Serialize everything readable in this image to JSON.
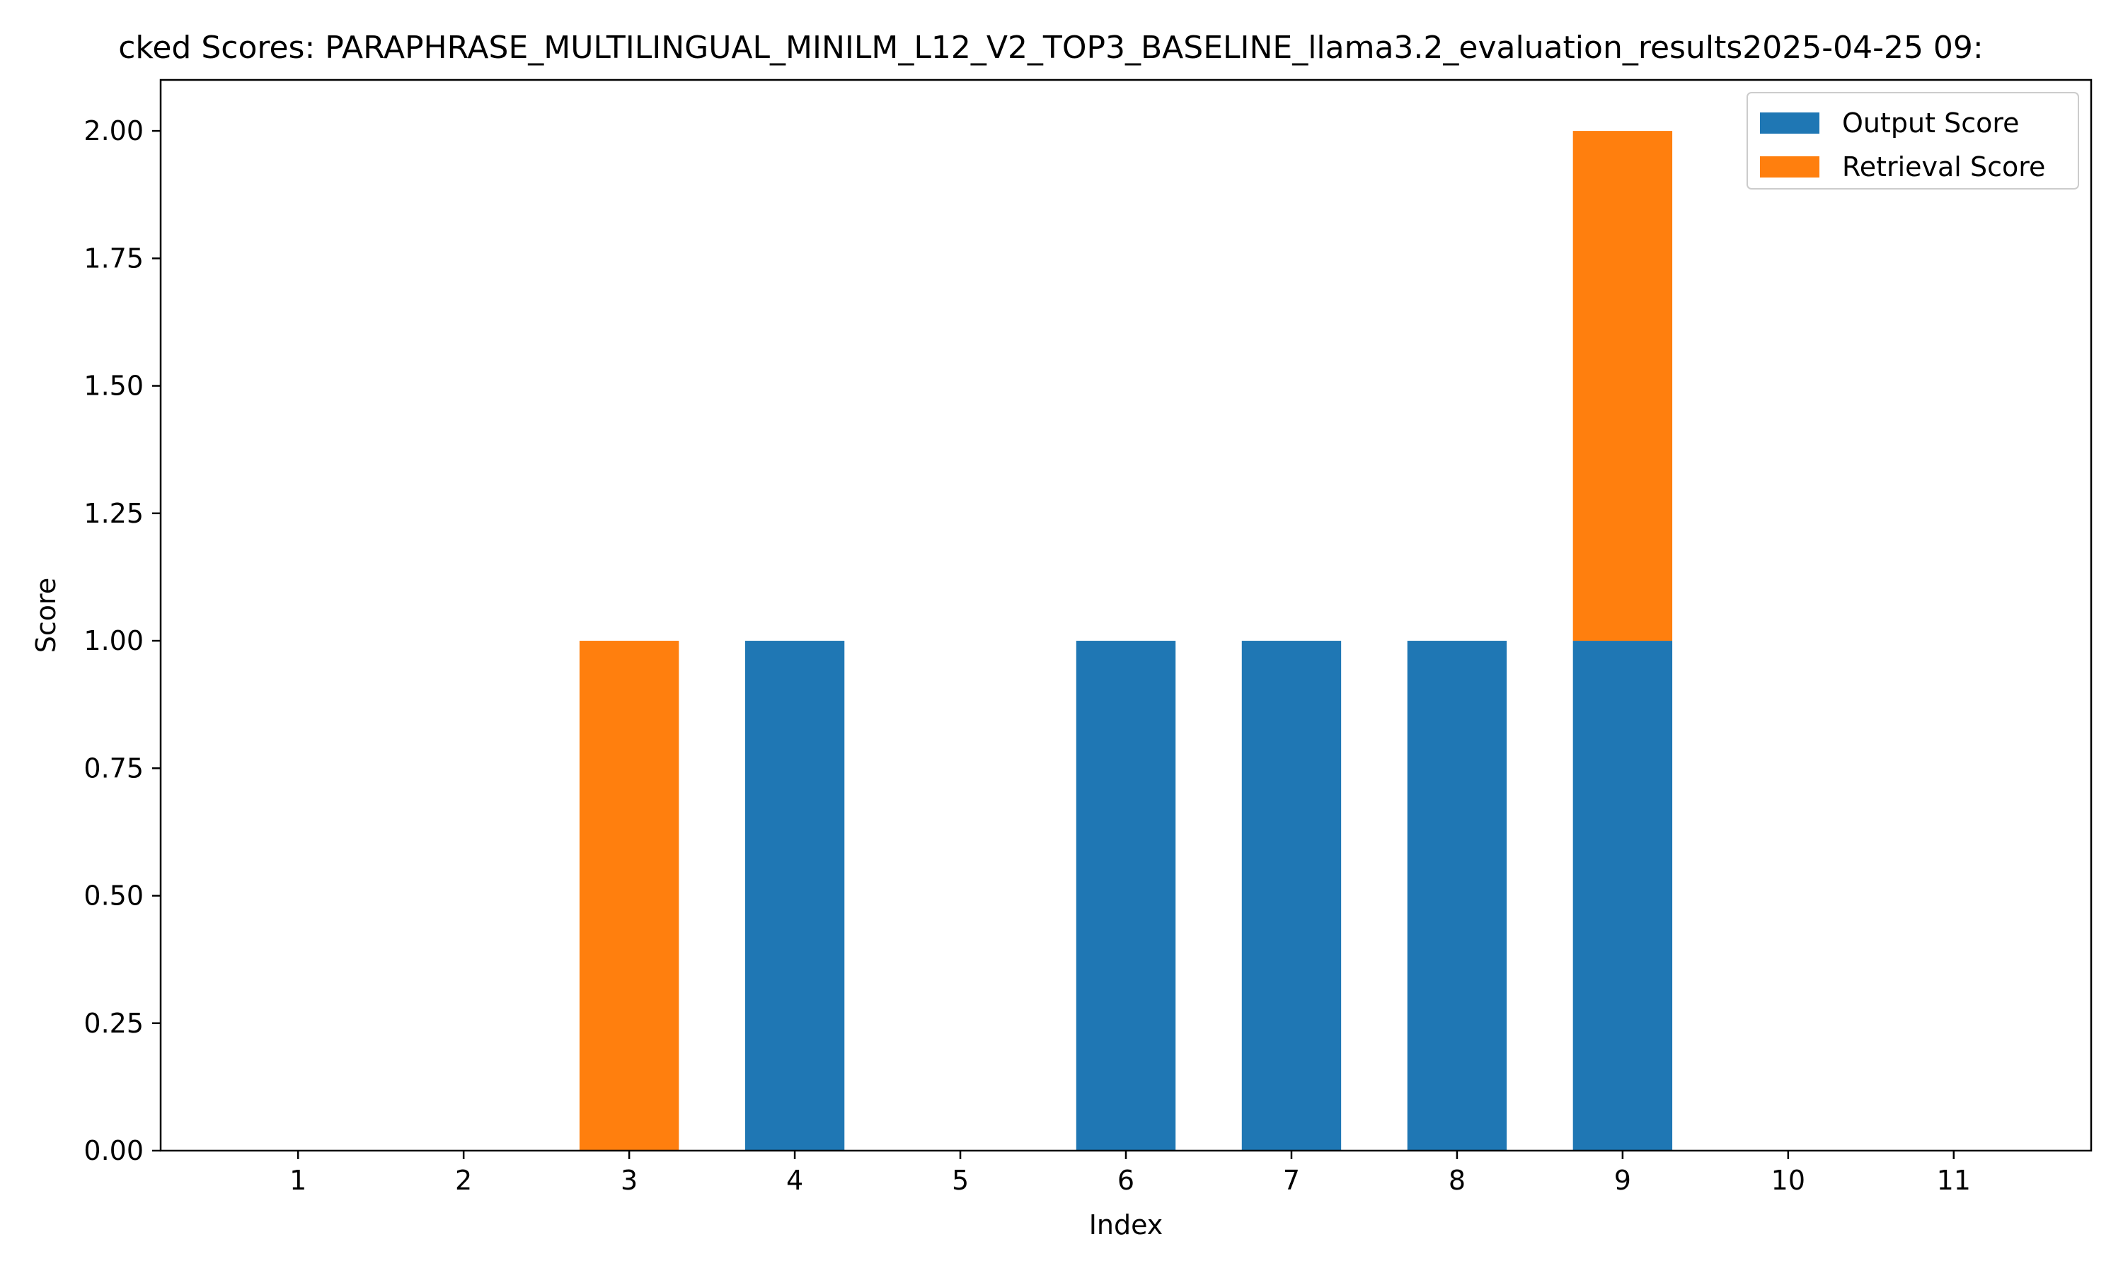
{
  "chart_data": {
    "type": "bar",
    "stacked": true,
    "title": "cked Scores: PARAPHRASE_MULTILINGUAL_MINILM_L12_V2_TOP3_BASELINE_llama3.2_evaluation_results2025-04-25 09:",
    "xlabel": "Index",
    "ylabel": "Score",
    "categories": [
      "1",
      "2",
      "3",
      "4",
      "5",
      "6",
      "7",
      "8",
      "9",
      "10",
      "11"
    ],
    "series": [
      {
        "name": "Output Score",
        "color": "#1f77b4",
        "values": [
          0,
          0,
          0,
          1,
          0,
          1,
          1,
          1,
          1,
          0,
          0
        ]
      },
      {
        "name": "Retrieval Score",
        "color": "#ff7f0e",
        "values": [
          0,
          0,
          1,
          0,
          0,
          0,
          0,
          0,
          1,
          0,
          0
        ]
      }
    ],
    "xlim": [
      0.17,
      11.83
    ],
    "ylim": [
      0,
      2.1
    ],
    "yticks": [
      "0.00",
      "0.25",
      "0.50",
      "0.75",
      "1.00",
      "1.25",
      "1.50",
      "1.75",
      "2.00"
    ],
    "grid": false,
    "legend_position": "top-right"
  }
}
